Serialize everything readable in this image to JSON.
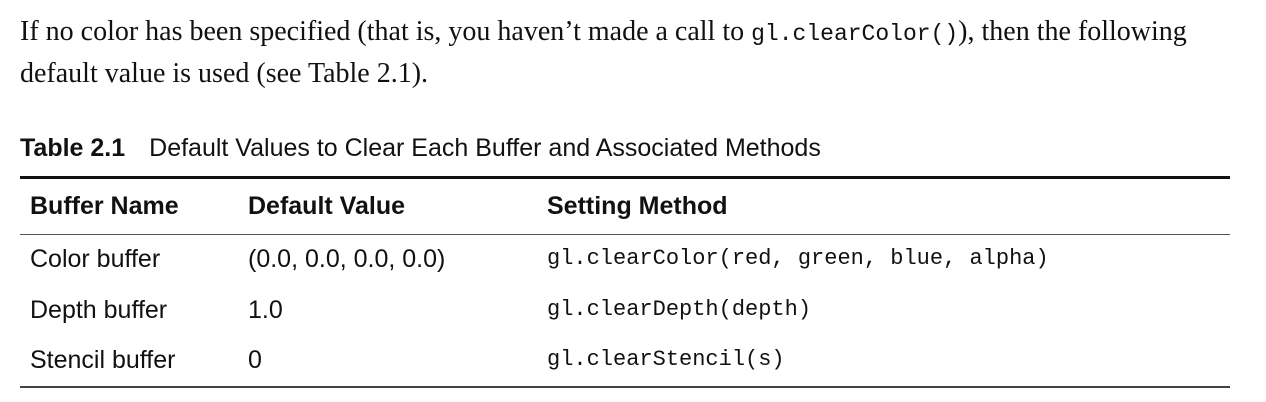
{
  "paragraph": {
    "before_code": "If no color has been specified (that is, you haven’t made a call to ",
    "code": "gl.clearColor()",
    "after_code": "), then the following default value is used (see Table 2.1)."
  },
  "table": {
    "caption_number": "Table 2.1",
    "caption_title": "Default Values to Clear Each Buffer and Associated Methods",
    "headers": [
      "Buffer Name",
      "Default Value",
      "Setting Method"
    ],
    "rows": [
      [
        "Color buffer",
        "(0.0, 0.0, 0.0, 0.0)",
        "gl.clearColor(red, green, blue, alpha)"
      ],
      [
        "Depth buffer",
        "1.0",
        "gl.clearDepth(depth)"
      ],
      [
        "Stencil buffer",
        "0",
        "gl.clearStencil(s)"
      ]
    ]
  }
}
